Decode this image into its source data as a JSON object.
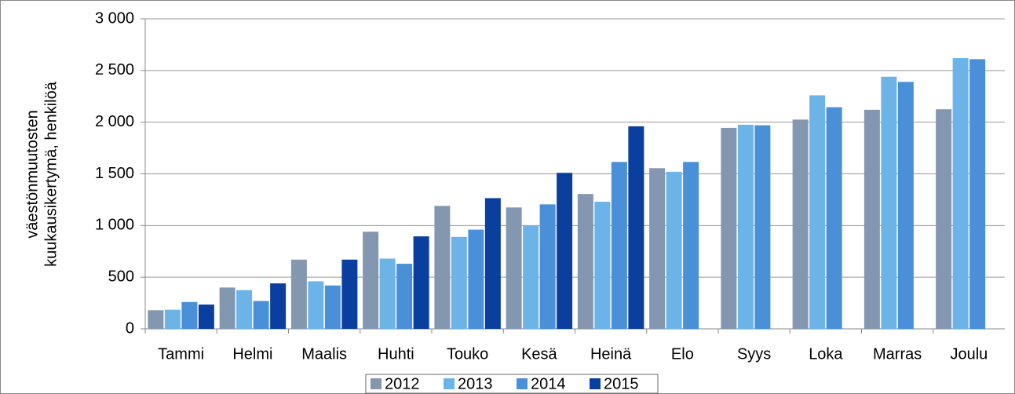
{
  "chart_data": {
    "type": "bar",
    "ylabel": [
      "väestönmuutosten",
      "kuukausikertymä, henkilöä"
    ],
    "categories": [
      "Tammi",
      "Helmi",
      "Maalis",
      "Huhti",
      "Touko",
      "Kesä",
      "Heinä",
      "Elo",
      "Syys",
      "Loka",
      "Marras",
      "Joulu"
    ],
    "series": [
      {
        "name": "2012",
        "color": "#8497b0",
        "values": [
          180,
          400,
          670,
          940,
          1190,
          1175,
          1305,
          1555,
          1945,
          2025,
          2120,
          2125
        ]
      },
      {
        "name": "2013",
        "color": "#6cb4e8",
        "values": [
          185,
          375,
          460,
          680,
          890,
          1000,
          1230,
          1520,
          1975,
          2260,
          2440,
          2620
        ]
      },
      {
        "name": "2014",
        "color": "#4a90d9",
        "values": [
          260,
          270,
          420,
          630,
          960,
          1205,
          1615,
          1615,
          1970,
          2145,
          2390,
          2610
        ]
      },
      {
        "name": "2015",
        "color": "#0a3fa0",
        "values": [
          235,
          440,
          670,
          895,
          1265,
          1510,
          1960,
          null,
          null,
          null,
          null,
          null
        ]
      }
    ],
    "ylim": [
      0,
      3000
    ],
    "yticks": [
      0,
      500,
      {
        "value": 1000,
        "label": "1 000"
      },
      {
        "value": 1500,
        "label": "1 500"
      },
      {
        "value": 2000,
        "label": "2 000"
      },
      {
        "value": 2500,
        "label": "2 500"
      },
      {
        "value": 3000,
        "label": "3 000"
      }
    ],
    "grid": true,
    "legend": "bottom"
  }
}
